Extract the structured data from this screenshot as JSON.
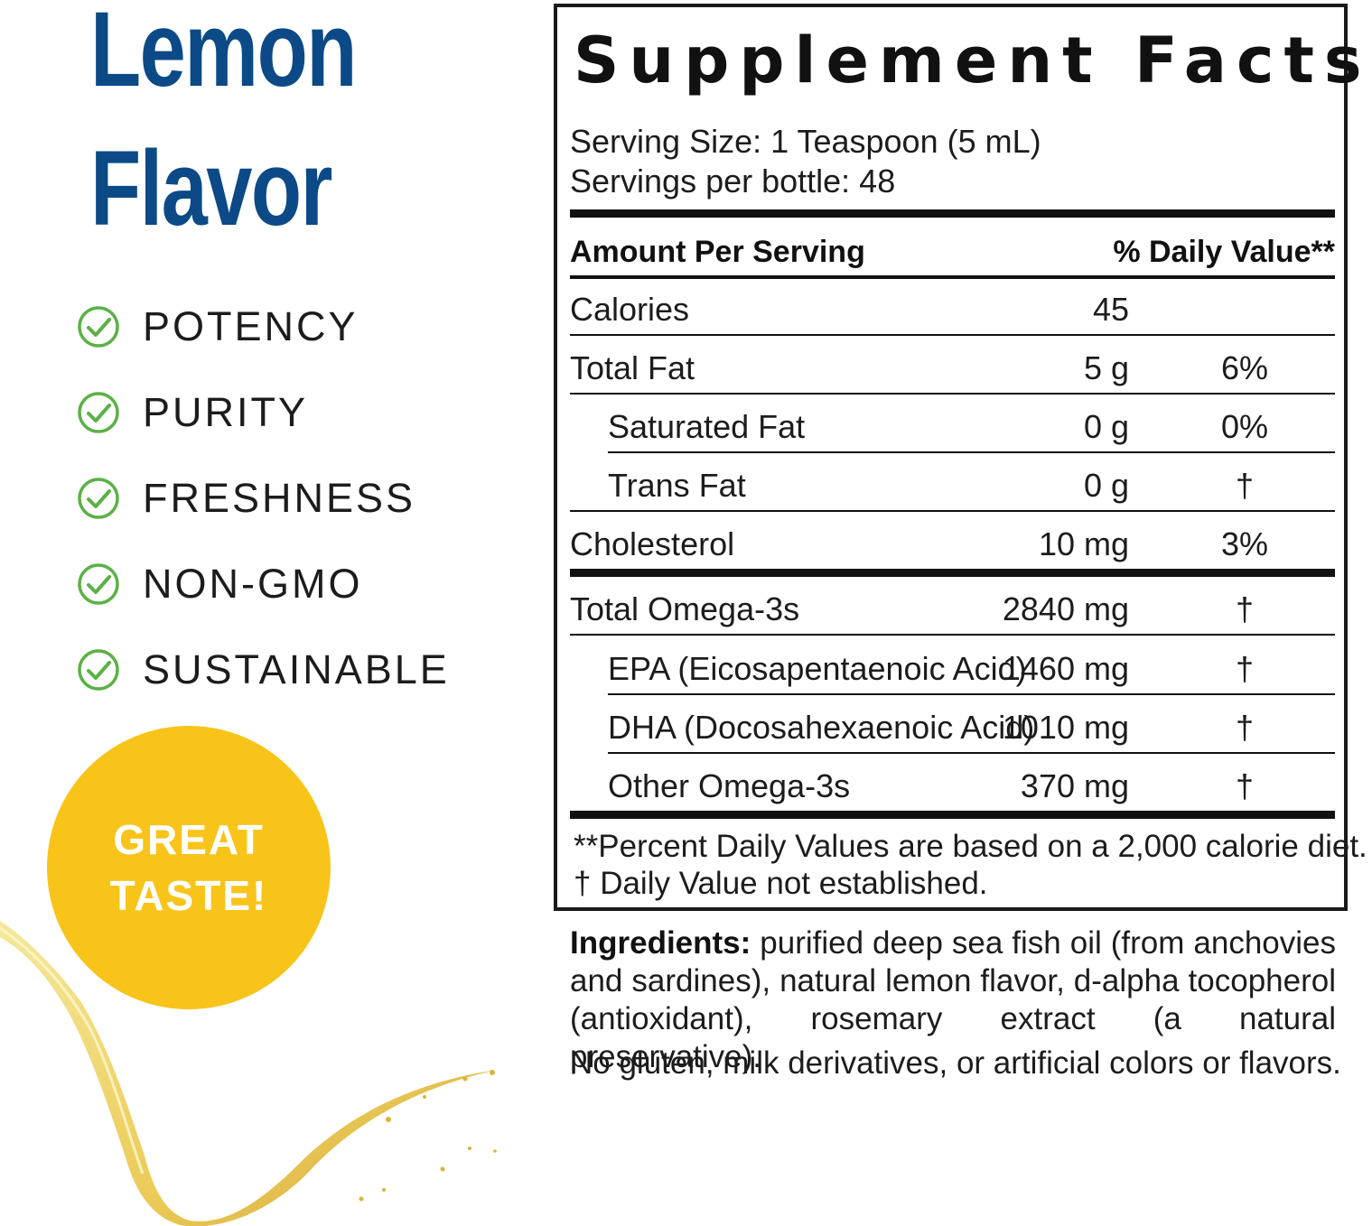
{
  "headline": {
    "line1": "Lemon",
    "line2": "Flavor",
    "color": "#0b4a86"
  },
  "benefits": [
    {
      "label": "POTENCY",
      "icon": "check-circle-icon"
    },
    {
      "label": "PURITY",
      "icon": "check-circle-icon"
    },
    {
      "label": "FRESHNESS",
      "icon": "check-circle-icon"
    },
    {
      "label": "NON-GMO",
      "icon": "check-circle-icon"
    },
    {
      "label": "SUSTAINABLE",
      "icon": "check-circle-icon"
    }
  ],
  "badge": {
    "line1": "GREAT",
    "line2": "TASTE!",
    "color": "#f8c41a"
  },
  "facts": {
    "title": "Supplement Facts",
    "serving_size": "Serving Size: 1 Teaspoon (5 mL)",
    "servings_per": "Servings per bottle: 48",
    "header_left": "Amount Per Serving",
    "header_right": "% Daily Value**",
    "rows": [
      {
        "name": "Calories",
        "amount": "45",
        "dv": ""
      },
      {
        "name": "Total Fat",
        "amount": "5 g",
        "dv": "6%"
      },
      {
        "name": "Saturated Fat",
        "amount": "0 g",
        "dv": "0%"
      },
      {
        "name": "Trans Fat",
        "amount": "0 g",
        "dv": "†"
      },
      {
        "name": "Cholesterol",
        "amount": "10 mg",
        "dv": "3%"
      },
      {
        "name": "Total Omega-3s",
        "amount": "2840 mg",
        "dv": "†"
      },
      {
        "name": "EPA (Eicosapentaenoic Acid)",
        "amount": "1460 mg",
        "dv": "†"
      },
      {
        "name": "DHA (Docosahexaenoic Acid)",
        "amount": "1010 mg",
        "dv": "†"
      },
      {
        "name": "Other Omega-3s",
        "amount": "370 mg",
        "dv": "†"
      }
    ],
    "footnote1": "**Percent Daily Values are based on a 2,000 calorie diet.",
    "footnote2": "† Daily Value not established."
  },
  "ingredients": {
    "label": "Ingredients:",
    "text": "purified deep sea fish oil (from anchovies and sardines), natural lemon flavor, d-alpha tocopherol (antioxidant), rosemary extract (a natural preservative).",
    "free_from": "No gluten, milk derivatives, or artificial colors or flavors."
  }
}
